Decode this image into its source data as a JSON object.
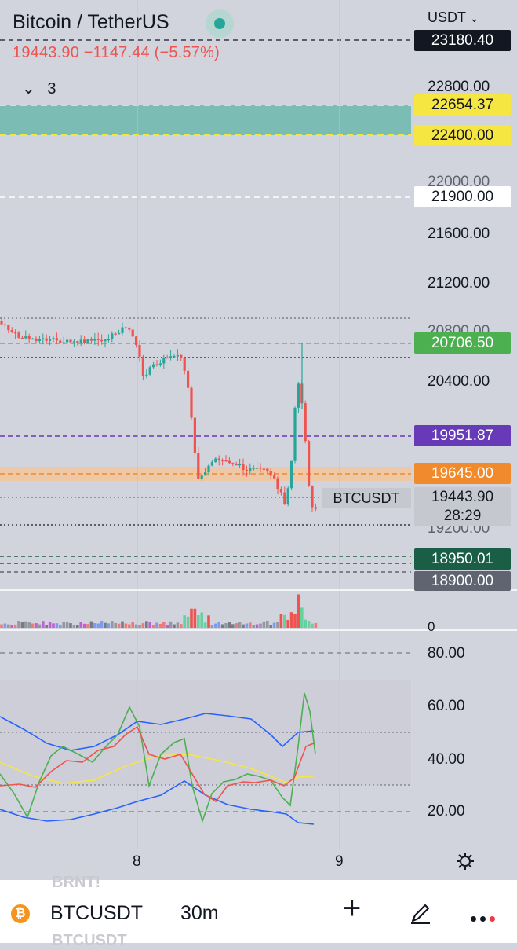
{
  "header": {
    "title": "Bitcoin / TetherUS",
    "price_line": "19443.90  −1147.44 (−5.57%)",
    "currency": "USDT",
    "indicators_count": "3",
    "status_color": "#26a69a"
  },
  "price_axis": {
    "ticks": [
      "22800.00",
      "22000.00",
      "21600.00",
      "21200.00",
      "20800.00",
      "20400.00",
      "19200.00"
    ],
    "labels": [
      {
        "text": "23180.40",
        "bg": "#131722",
        "fg": "#ffffff"
      },
      {
        "text": "22654.37",
        "bg": "#f5e642",
        "fg": "#131722"
      },
      {
        "text": "22400.00",
        "bg": "#f5e642",
        "fg": "#131722"
      },
      {
        "text": "21900.00",
        "bg": "#ffffff",
        "fg": "#131722"
      },
      {
        "text": "20706.50",
        "bg": "#4caf50",
        "fg": "#ffffff"
      },
      {
        "text": "19951.87",
        "bg": "#673ab7",
        "fg": "#ffffff"
      },
      {
        "text": "19645.00",
        "bg": "#f08a2c",
        "fg": "#ffffff"
      },
      {
        "text": "18950.01",
        "bg": "#1b5e46",
        "fg": "#ffffff"
      },
      {
        "text": "18900.00",
        "bg": "#5f6470",
        "fg": "#ffffff"
      }
    ],
    "last_price": "19443.90",
    "countdown": "28:29",
    "symbol_tag": "BTCUSDT"
  },
  "volume_axis": {
    "zero": "0"
  },
  "oscillator_axis": {
    "ticks": [
      "80.00",
      "60.00",
      "40.00",
      "20.00"
    ]
  },
  "time_axis": {
    "ticks": [
      "8",
      "9"
    ]
  },
  "bottom_bar": {
    "symbol": "BTCUSDT",
    "interval": "30m",
    "ghost_top": "BRNT!",
    "ghost_bottom": "BTCUSDT"
  },
  "icons": [
    "settings-icon",
    "bitcoin-icon",
    "plus-icon",
    "pen-icon",
    "more-icon",
    "chevron-down-icon"
  ],
  "colors": {
    "up": "#26a69a",
    "down": "#ef5350",
    "background": "#d1d4dc"
  }
}
